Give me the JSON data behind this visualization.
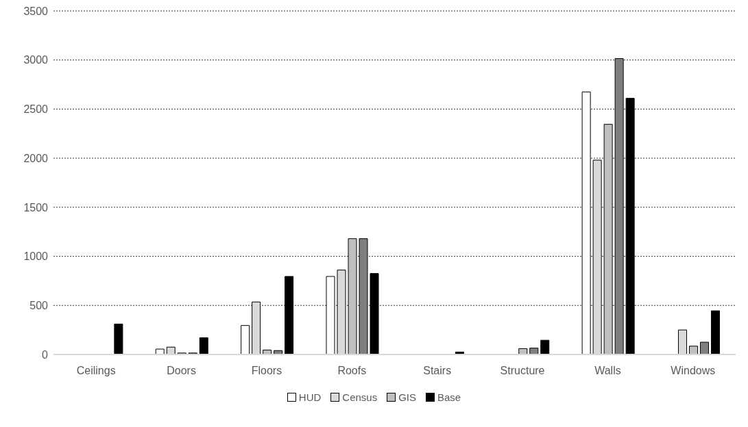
{
  "chart_data": {
    "type": "bar",
    "categories": [
      "Ceilings",
      "Doors",
      "Floors",
      "Roofs",
      "Stairs",
      "Structure",
      "Walls",
      "Windows"
    ],
    "series": [
      {
        "name": "HUD",
        "color": "#ffffff",
        "values": [
          0,
          55,
          295,
          795,
          0,
          0,
          2675,
          0
        ]
      },
      {
        "name": "Census",
        "color": "#d9d9d9",
        "values": [
          0,
          75,
          535,
          860,
          3,
          0,
          1980,
          250
        ]
      },
      {
        "name": "GIS",
        "color": "#bfbfbf",
        "values": [
          0,
          15,
          45,
          1180,
          3,
          60,
          2345,
          85
        ]
      },
      {
        "color": "#7f7f7f",
        "values": [
          0,
          15,
          40,
          1180,
          0,
          65,
          3015,
          125
        ]
      },
      {
        "name": "Base",
        "color": "#000000",
        "values": [
          310,
          170,
          795,
          825,
          25,
          145,
          2610,
          445
        ]
      }
    ],
    "ylim": [
      0,
      3500
    ],
    "yticks": [
      0,
      500,
      1000,
      1500,
      2000,
      2500,
      3000,
      3500
    ],
    "grid": "y",
    "legend": "bottom"
  }
}
